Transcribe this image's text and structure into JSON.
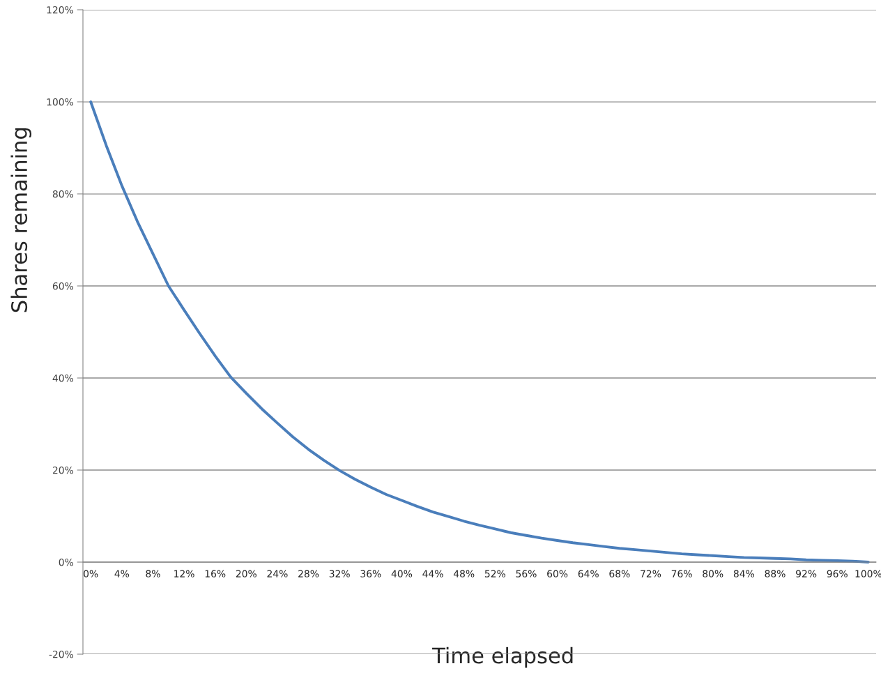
{
  "chart_data": {
    "type": "line",
    "xlabel": "Time elapsed",
    "ylabel": "Shares remaining",
    "categories": [
      "0%",
      null,
      "4%",
      null,
      "8%",
      null,
      "12%",
      null,
      "16%",
      null,
      "20%",
      null,
      "24%",
      null,
      "28%",
      null,
      "32%",
      null,
      "36%",
      null,
      "40%",
      null,
      "44%",
      null,
      "48%",
      null,
      "52%",
      null,
      "56%",
      null,
      "60%",
      null,
      "64%",
      null,
      "68%",
      null,
      "72%",
      null,
      "76%",
      null,
      "80%",
      null,
      "84%",
      null,
      "88%",
      null,
      "92%",
      null,
      "96%",
      null,
      "100%"
    ],
    "series": [
      {
        "color": "#4a7ebb",
        "values": [
          100,
          90.5,
          81.8,
          74,
          67,
          60,
          54.8,
          49.7,
          44.8,
          40.2,
          36.7,
          33.3,
          30.2,
          27.2,
          24.5,
          22.1,
          19.9,
          18.0,
          16.3,
          14.7,
          13.4,
          12.1,
          10.9,
          9.9,
          8.9,
          8.0,
          7.2,
          6.4,
          5.8,
          5.2,
          4.7,
          4.2,
          3.8,
          3.4,
          3.0,
          2.7,
          2.4,
          2.1,
          1.8,
          1.6,
          1.4,
          1.2,
          1.0,
          0.9,
          0.8,
          0.7,
          0.5,
          0.4,
          0.3,
          0.2,
          0
        ]
      }
    ],
    "ylim": [
      -20,
      120
    ],
    "yticks": [
      {
        "value": -20,
        "label": "-20%"
      },
      {
        "value": 0,
        "label": "0%"
      },
      {
        "value": 20,
        "label": "20%"
      },
      {
        "value": 40,
        "label": "40%"
      },
      {
        "value": 60,
        "label": "60%"
      },
      {
        "value": 80,
        "label": "80%"
      },
      {
        "value": 100,
        "label": "100%"
      },
      {
        "value": 120,
        "label": "120%"
      }
    ],
    "grid": "y",
    "marker": "none",
    "line_style": "solid"
  }
}
